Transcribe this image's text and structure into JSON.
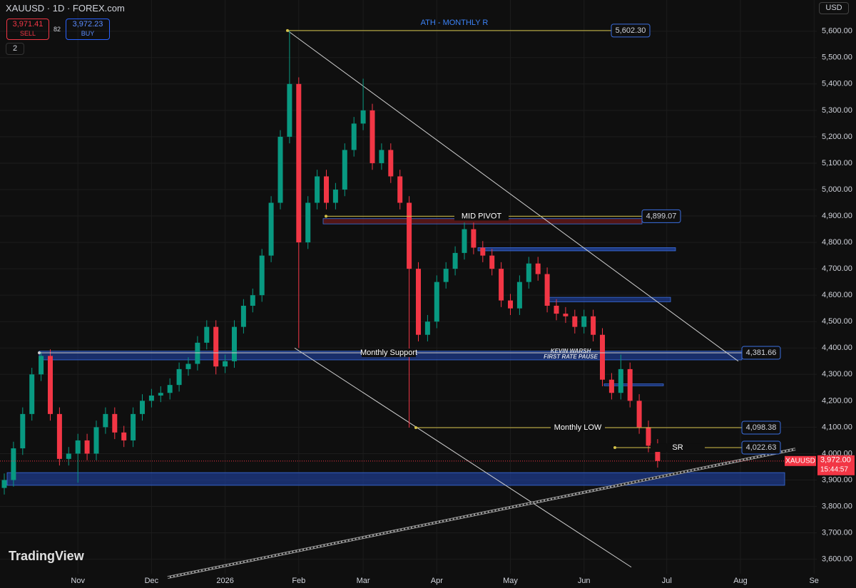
{
  "header": {
    "symbol": "XAUUSD · 1D · FOREX.com",
    "sell_price": "3,971.41",
    "sell": "SELL",
    "spread": "82",
    "buy_price": "3,972.23",
    "buy": "BUY",
    "indicators": "2",
    "currency": "USD",
    "logo": "TradingView"
  },
  "chart_data": {
    "type": "candlestick",
    "categories": [
      null,
      null,
      null,
      null,
      null,
      null,
      null,
      null,
      "Nov",
      null,
      null,
      null,
      null,
      null,
      null,
      null,
      "Dec",
      null,
      null,
      null,
      null,
      null,
      null,
      null,
      "2026",
      null,
      null,
      null,
      null,
      null,
      null,
      null,
      "Feb",
      null,
      null,
      null,
      null,
      null,
      null,
      "Mar",
      null,
      null,
      null,
      null,
      null,
      null,
      null,
      "Apr",
      null,
      null,
      null,
      null,
      null,
      null,
      null,
      "May",
      null,
      null,
      null,
      null,
      null,
      null,
      null,
      "Jun",
      null,
      null,
      null,
      null,
      null,
      null,
      null,
      null,
      "Jul",
      null,
      null,
      null,
      null,
      null,
      null,
      null,
      "Aug",
      null,
      null,
      null,
      null,
      null,
      null,
      null,
      "Se"
    ],
    "open": [
      3870,
      3900,
      4020,
      4150,
      4300,
      4370,
      4150,
      3980,
      4000,
      4050,
      4000,
      4100,
      4150,
      4080,
      4050,
      4150,
      4200,
      4220,
      4230,
      4260,
      4320,
      4340,
      4420,
      4480,
      4330,
      4350,
      4480,
      4560,
      4600,
      4750,
      4950,
      5200,
      5400,
      4800,
      4950,
      5050,
      4950,
      5000,
      5150,
      5250,
      5300,
      5100,
      5150,
      5050,
      4950,
      4700,
      4450,
      4500,
      4650,
      4700,
      4760,
      4850,
      4780,
      4750,
      4700,
      4580,
      4550,
      4650,
      4720,
      4680,
      4560,
      4530,
      4520,
      4480,
      4520,
      4450,
      4280,
      4230,
      4320,
      4200,
      4100,
      4030,
      null,
      null,
      null,
      null,
      null,
      null,
      null,
      null,
      null,
      null,
      null,
      null,
      null,
      null,
      null,
      null,
      null
    ],
    "high": [
      3925,
      4045,
      4175,
      4325,
      4385,
      4395,
      4175,
      4025,
      4075,
      4075,
      4125,
      4175,
      4175,
      4105,
      4175,
      4225,
      4245,
      4255,
      4285,
      4345,
      4365,
      4445,
      4505,
      4505,
      4375,
      4505,
      4585,
      4625,
      4775,
      4975,
      5225,
      5602.3,
      5425,
      4975,
      5075,
      5075,
      5025,
      5175,
      5275,
      5420,
      5325,
      5175,
      5175,
      5075,
      4975,
      4725,
      4525,
      4675,
      4725,
      4785,
      4875,
      4875,
      4805,
      4775,
      4725,
      4605,
      4675,
      4745,
      4745,
      4705,
      4585,
      4555,
      4545,
      4545,
      4545,
      4475,
      4305,
      4375,
      4345,
      4225,
      4125,
      4055,
      null,
      null,
      null,
      null,
      null,
      null,
      null,
      null,
      null,
      null,
      null,
      null,
      null,
      null,
      null,
      null,
      null
    ],
    "low": [
      3845,
      3875,
      3995,
      4125,
      4275,
      4125,
      3955,
      3955,
      3890,
      3975,
      3975,
      4075,
      4055,
      4025,
      4025,
      4125,
      4175,
      4195,
      4205,
      4235,
      4295,
      4315,
      4395,
      4300,
      4305,
      4325,
      4455,
      4535,
      4575,
      4725,
      4925,
      5175,
      4400,
      4775,
      4925,
      4925,
      4925,
      4975,
      5125,
      5225,
      5075,
      5075,
      5025,
      4925,
      4098.38,
      4425,
      4425,
      4475,
      4625,
      4675,
      4735,
      4755,
      4725,
      4675,
      4555,
      4525,
      4525,
      4625,
      4655,
      4535,
      4505,
      4495,
      4455,
      4455,
      4425,
      4255,
      4205,
      4205,
      4175,
      4075,
      4005,
      3947,
      null,
      null,
      null,
      null,
      null,
      null,
      null,
      null,
      null,
      null,
      null,
      null,
      null,
      null,
      null,
      null,
      null
    ],
    "close": [
      3900,
      4020,
      4150,
      4300,
      4370,
      4150,
      3980,
      4000,
      4050,
      4000,
      4100,
      4150,
      4080,
      4050,
      4150,
      4200,
      4220,
      4230,
      4260,
      4320,
      4340,
      4420,
      4480,
      4330,
      4350,
      4480,
      4560,
      4600,
      4750,
      4950,
      5200,
      5400,
      4800,
      4950,
      5050,
      4950,
      5000,
      5150,
      5250,
      5300,
      5100,
      5150,
      5050,
      4950,
      4700,
      4450,
      4500,
      4650,
      4700,
      4760,
      4850,
      4780,
      4750,
      4700,
      4580,
      4550,
      4650,
      4720,
      4680,
      4560,
      4530,
      4520,
      4480,
      4520,
      4450,
      4280,
      4230,
      4320,
      4200,
      4100,
      4030,
      3972,
      null,
      null,
      null,
      null,
      null,
      null,
      null,
      null,
      null,
      null,
      null,
      null,
      null,
      null,
      null,
      null,
      null
    ],
    "up_color": "#089981",
    "down_color": "#f23645",
    "ylim": [
      3545,
      5718
    ],
    "yticks": [
      {
        "value": 3600,
        "label": "3,600.00"
      },
      {
        "value": 3700,
        "label": "3,700.00"
      },
      {
        "value": 3800,
        "label": "3,800.00"
      },
      {
        "value": 3900,
        "label": "3,900.00"
      },
      {
        "value": 4000,
        "label": "4,000.00"
      },
      {
        "value": 4100,
        "label": "4,100.00"
      },
      {
        "value": 4200,
        "label": "4,200.00"
      },
      {
        "value": 4300,
        "label": "4,300.00"
      },
      {
        "value": 4400,
        "label": "4,400.00"
      },
      {
        "value": 4500,
        "label": "4,500.00"
      },
      {
        "value": 4600,
        "label": "4,600.00"
      },
      {
        "value": 4700,
        "label": "4,700.00"
      },
      {
        "value": 4800,
        "label": "4,800.00"
      },
      {
        "value": 4900,
        "label": "4,900.00"
      },
      {
        "value": 5000,
        "label": "5,000.00"
      },
      {
        "value": 5100,
        "label": "5,100.00"
      },
      {
        "value": 5200,
        "label": "5,200.00"
      },
      {
        "value": 5300,
        "label": "5,300.00"
      },
      {
        "value": 5400,
        "label": "5,400.00"
      },
      {
        "value": 5500,
        "label": "5,500.00"
      },
      {
        "value": 5600,
        "label": "5,600.00"
      }
    ],
    "grid": true,
    "levels": [
      {
        "name": "ATH - MONTHLY R",
        "value": 5602.3,
        "label": "5,602.30"
      },
      {
        "name": "MID PIVOT",
        "value": 4899.07,
        "label": "4,899.07"
      },
      {
        "name": "Monthly Support",
        "value": 4381.66,
        "label": "4,381.66"
      },
      {
        "name": "Monthly LOW",
        "value": 4098.38,
        "label": "4,098.38"
      },
      {
        "name": "SR",
        "value": 4022.63,
        "label": "4,022.63"
      }
    ],
    "zones": [
      {
        "low": 4355,
        "high": 4388
      },
      {
        "low": 3880,
        "high": 3928
      },
      {
        "low": 4870,
        "high": 4890
      },
      {
        "low": 4768,
        "high": 4780
      },
      {
        "low": 4575,
        "high": 4592
      },
      {
        "low": 4257,
        "high": 4264
      }
    ],
    "trendlines": [
      {
        "start": 5602.3,
        "end": 4350
      },
      {
        "start": 4400,
        "end": 3570
      },
      {
        "start": 3531,
        "end": 4017
      }
    ],
    "annotations": [
      "KEVIN WARSH",
      "FIRST RATE PAUSE"
    ],
    "last_price": {
      "symbol": "XAUUSD",
      "value": 3972,
      "label": "3,972.00",
      "countdown": "15:44:57"
    }
  }
}
